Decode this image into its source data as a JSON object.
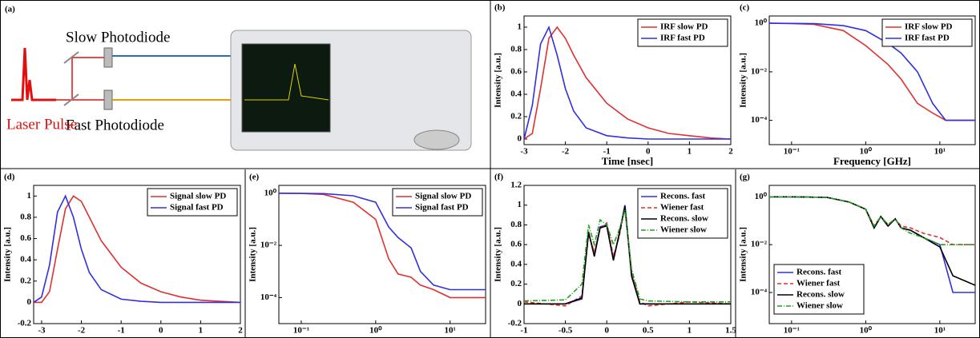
{
  "diagram": {
    "panel": "(a)",
    "slow_label": "Slow Photodiode",
    "fast_label": "Fast Photodiode",
    "source_label": "Laser Pulse"
  },
  "chart_data": [
    {
      "type": "line",
      "panel": "(b)",
      "xlabel": "Time [nsec]",
      "ylabel": "Intensity [a.u.]",
      "x": [
        -3,
        -2.8,
        -2.6,
        -2.4,
        -2.2,
        -2,
        -1.8,
        -1.5,
        -1,
        -0.5,
        0,
        0.5,
        1,
        1.5,
        2
      ],
      "series": [
        {
          "name": "IRF slow PD",
          "color": "#e03030",
          "values": [
            0,
            0.05,
            0.45,
            0.9,
            1.0,
            0.9,
            0.75,
            0.55,
            0.32,
            0.18,
            0.1,
            0.05,
            0.03,
            0.01,
            0
          ]
        },
        {
          "name": "IRF fast PD",
          "color": "#3030e0",
          "values": [
            0,
            0.3,
            0.85,
            1.0,
            0.75,
            0.45,
            0.25,
            0.1,
            0.03,
            0.01,
            0,
            0,
            0,
            0,
            0
          ]
        }
      ],
      "xlim": [
        -3,
        2
      ],
      "xticks": [
        -3,
        -2,
        -1,
        0,
        1,
        2
      ],
      "ylim": [
        -0.05,
        1.1
      ],
      "yticks": [
        0,
        0.2,
        0.4,
        0.6,
        0.8,
        1
      ],
      "legend": "upper right"
    },
    {
      "type": "line",
      "panel": "(c)",
      "xlabel": "Frequency [GHz]",
      "ylabel": "Intensity [a.u.]",
      "log": true,
      "x": [
        0.05,
        0.1,
        0.2,
        0.5,
        1,
        2,
        3,
        5,
        8,
        12,
        20,
        30
      ],
      "series": [
        {
          "name": "IRF slow PD",
          "color": "#e03030",
          "values": [
            1,
            0.98,
            0.9,
            0.5,
            0.12,
            0.02,
            0.005,
            0.0005,
            0.0002,
            0.0001,
            0.0001,
            0.0001
          ]
        },
        {
          "name": "IRF fast PD",
          "color": "#3030e0",
          "values": [
            1,
            0.99,
            0.97,
            0.8,
            0.5,
            0.15,
            0.06,
            0.01,
            0.0005,
            0.0001,
            0.0001,
            0.0001
          ]
        }
      ],
      "xlim": [
        0.05,
        30
      ],
      "xticks": [
        {
          "value": 0.1,
          "label": "10⁻¹"
        },
        {
          "value": 1,
          "label": "10⁰"
        },
        {
          "value": 10,
          "label": "10¹"
        }
      ],
      "ylim": [
        1e-05,
        2
      ],
      "yticks": [
        {
          "value": 0.0001,
          "label": "10⁻⁴"
        },
        {
          "value": 0.01,
          "label": "10⁻²"
        },
        {
          "value": 1,
          "label": "10⁰"
        }
      ],
      "legend": "upper right"
    },
    {
      "type": "line",
      "panel": "(d)",
      "ylabel": "Intensity [a.u.]",
      "x": [
        -3.2,
        -3,
        -2.8,
        -2.6,
        -2.4,
        -2.2,
        -2,
        -1.8,
        -1.5,
        -1,
        -0.5,
        0,
        0.5,
        1,
        2
      ],
      "series": [
        {
          "name": "Signal slow PD",
          "color": "#e03030",
          "values": [
            0,
            0,
            0.1,
            0.5,
            0.88,
            1.0,
            0.95,
            0.8,
            0.58,
            0.33,
            0.18,
            0.1,
            0.05,
            0.02,
            0
          ]
        },
        {
          "name": "Signal fast PD",
          "color": "#3030e0",
          "values": [
            0,
            0.05,
            0.35,
            0.85,
            1.0,
            0.8,
            0.5,
            0.28,
            0.12,
            0.03,
            0.01,
            0,
            0,
            0,
            0
          ]
        }
      ],
      "xlim": [
        -3.2,
        2
      ],
      "xticks": [
        -3,
        -2,
        -1,
        0,
        1,
        2
      ],
      "ylim": [
        -0.2,
        1.1
      ],
      "yticks": [
        -0.2,
        0,
        0.2,
        0.4,
        0.6,
        0.8,
        1
      ],
      "legend": "upper right"
    },
    {
      "type": "line",
      "panel": "(e)",
      "ylabel": "Intensity [a.u.]",
      "log": true,
      "x": [
        0.05,
        0.1,
        0.2,
        0.5,
        1,
        1.5,
        2,
        3,
        4,
        6,
        10,
        20,
        30
      ],
      "series": [
        {
          "name": "Signal slow PD",
          "color": "#e03030",
          "values": [
            1,
            0.98,
            0.9,
            0.45,
            0.1,
            0.003,
            0.0008,
            0.0006,
            0.0003,
            0.0002,
            0.0001,
            0.0001,
            0.0001
          ]
        },
        {
          "name": "Signal fast PD",
          "color": "#3030e0",
          "values": [
            1,
            0.99,
            0.97,
            0.8,
            0.45,
            0.05,
            0.02,
            0.008,
            0.001,
            0.0003,
            0.0002,
            0.0002,
            0.0002
          ]
        }
      ],
      "xlim": [
        0.05,
        30
      ],
      "xticks": [
        {
          "value": 0.1,
          "label": "10⁻¹"
        },
        {
          "value": 1,
          "label": "10⁰"
        },
        {
          "value": 10,
          "label": "10¹"
        }
      ],
      "ylim": [
        1e-05,
        2
      ],
      "yticks": [
        {
          "value": 0.0001,
          "label": "10⁻⁴"
        },
        {
          "value": 0.01,
          "label": "10⁻²"
        },
        {
          "value": 1,
          "label": "10⁰"
        }
      ],
      "legend": "upper right"
    },
    {
      "type": "line",
      "panel": "(f)",
      "ylabel": "Intensity [a.u.]",
      "x": [
        -1,
        -0.5,
        -0.3,
        -0.22,
        -0.15,
        -0.08,
        0,
        0.08,
        0.15,
        0.22,
        0.3,
        0.4,
        0.5,
        1,
        1.5
      ],
      "series": [
        {
          "name": "Recons. fast",
          "color": "#3030e0",
          "dash": "solid",
          "values": [
            0,
            0,
            0.05,
            0.72,
            0.5,
            0.78,
            0.8,
            0.45,
            0.7,
            1.0,
            0.3,
            0,
            0,
            0,
            0
          ]
        },
        {
          "name": "Wiener fast",
          "color": "#e03030",
          "dash": "dashed",
          "values": [
            0.02,
            -0.02,
            0.08,
            0.7,
            0.52,
            0.76,
            0.82,
            0.48,
            0.68,
            0.98,
            0.32,
            0.02,
            -0.02,
            0.02,
            0
          ]
        },
        {
          "name": "Recons. slow",
          "color": "#000000",
          "dash": "solid",
          "values": [
            0,
            0,
            0.06,
            0.73,
            0.48,
            0.77,
            0.79,
            0.44,
            0.71,
            0.99,
            0.28,
            0,
            0,
            0,
            0
          ]
        },
        {
          "name": "Wiener slow",
          "color": "#20a020",
          "dash": "dashdot",
          "values": [
            0.03,
            0.04,
            0.2,
            0.8,
            0.6,
            0.85,
            0.8,
            0.6,
            0.75,
            0.95,
            0.35,
            0.05,
            0.03,
            0.02,
            0.02
          ]
        }
      ],
      "xlim": [
        -1,
        1.5
      ],
      "xticks": [
        -1,
        -0.5,
        0,
        0.5,
        1,
        1.5
      ],
      "ylim": [
        -0.2,
        1.2
      ],
      "yticks": [
        -0.2,
        0,
        0.2,
        0.4,
        0.6,
        0.8,
        1,
        1.2
      ],
      "legend": "upper right"
    },
    {
      "type": "line",
      "panel": "(g)",
      "ylabel": "Intensity [a.u.]",
      "log": true,
      "x": [
        0.05,
        0.1,
        0.3,
        0.6,
        1,
        1.3,
        1.6,
        2,
        2.5,
        3,
        4,
        6,
        10,
        15,
        30
      ],
      "series": [
        {
          "name": "Recons. fast",
          "color": "#3030e0",
          "dash": "solid",
          "values": [
            1,
            1,
            0.95,
            0.6,
            0.3,
            0.05,
            0.15,
            0.06,
            0.12,
            0.05,
            0.04,
            0.02,
            0.01,
            0.0001,
            0.0001
          ]
        },
        {
          "name": "Wiener fast",
          "color": "#e03030",
          "dash": "dashed",
          "values": [
            1,
            1,
            0.95,
            0.6,
            0.3,
            0.06,
            0.15,
            0.07,
            0.12,
            0.06,
            0.05,
            0.03,
            0.02,
            0.01,
            0.01
          ]
        },
        {
          "name": "Recons. slow",
          "color": "#000000",
          "dash": "solid",
          "values": [
            1,
            1,
            0.95,
            0.6,
            0.3,
            0.05,
            0.15,
            0.06,
            0.12,
            0.05,
            0.04,
            0.02,
            0.008,
            0.0005,
            0.0002
          ]
        },
        {
          "name": "Wiener slow",
          "color": "#20a020",
          "dash": "dashdot",
          "values": [
            1,
            1,
            0.95,
            0.6,
            0.3,
            0.06,
            0.15,
            0.07,
            0.12,
            0.05,
            0.03,
            0.02,
            0.01,
            0.01,
            0.01
          ]
        }
      ],
      "xlim": [
        0.05,
        30
      ],
      "xticks": [
        {
          "value": 0.1,
          "label": "10⁻¹"
        },
        {
          "value": 1,
          "label": "10⁰"
        },
        {
          "value": 10,
          "label": "10¹"
        }
      ],
      "ylim": [
        5e-06,
        3
      ],
      "yticks": [
        {
          "value": 0.0001,
          "label": "10⁻⁴"
        },
        {
          "value": 0.01,
          "label": "10⁻²"
        },
        {
          "value": 1,
          "label": "10⁰"
        }
      ],
      "legend": "lower left"
    }
  ]
}
